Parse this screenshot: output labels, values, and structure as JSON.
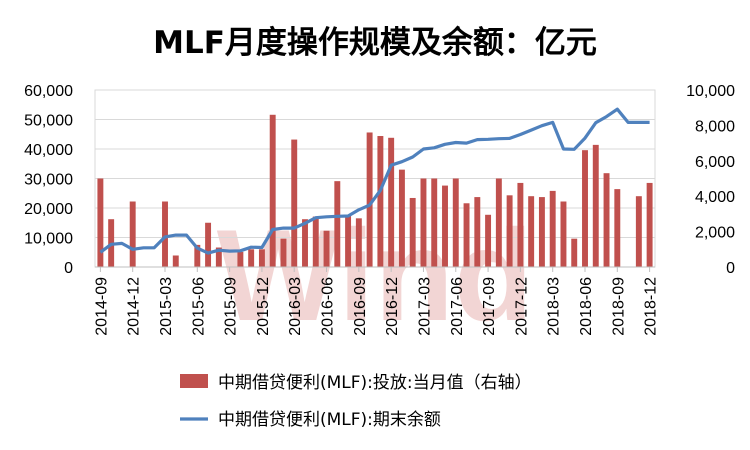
{
  "chart_data": {
    "type": "bar+line",
    "title": "MLF月度操作规模及余额：亿元",
    "watermark": "Wind",
    "left_axis": {
      "ticks": [
        "0",
        "10,000",
        "20,000",
        "30,000",
        "40,000",
        "50,000",
        "60,000"
      ],
      "range": [
        0,
        60000
      ]
    },
    "right_axis": {
      "ticks": [
        "0",
        "2,000",
        "4,000",
        "6,000",
        "8,000",
        "10,000"
      ],
      "range": [
        0,
        10000
      ]
    },
    "x_labels": [
      "2014-09",
      "2014-12",
      "2015-03",
      "2015-06",
      "2015-09",
      "2015-12",
      "2016-03",
      "2016-06",
      "2016-09",
      "2016-12",
      "2017-03",
      "2017-06",
      "2017-09",
      "2017-12",
      "2018-03",
      "2018-06",
      "2018-09",
      "2018-12"
    ],
    "months": [
      "2014-09",
      "2014-10",
      "2014-11",
      "2014-12",
      "2015-01",
      "2015-02",
      "2015-03",
      "2015-04",
      "2015-05",
      "2015-06",
      "2015-07",
      "2015-08",
      "2015-09",
      "2015-10",
      "2015-11",
      "2015-12",
      "2016-01",
      "2016-02",
      "2016-03",
      "2016-04",
      "2016-05",
      "2016-06",
      "2016-07",
      "2016-08",
      "2016-09",
      "2016-10",
      "2016-11",
      "2016-12",
      "2017-01",
      "2017-02",
      "2017-03",
      "2017-04",
      "2017-05",
      "2017-06",
      "2017-07",
      "2017-08",
      "2017-09",
      "2017-10",
      "2017-11",
      "2017-12",
      "2018-01",
      "2018-02",
      "2018-03",
      "2018-04",
      "2018-05",
      "2018-06",
      "2018-07",
      "2018-08",
      "2018-09",
      "2018-10",
      "2018-11",
      "2018-12"
    ],
    "series": [
      {
        "name": "中期借贷便利(MLF):投放:当月值（右轴）",
        "kind": "bar",
        "axis": "right",
        "color": "#c0504d",
        "values": [
          5000,
          2700,
          0,
          3700,
          0,
          0,
          3700,
          650,
          0,
          1250,
          2500,
          1100,
          0,
          850,
          1000,
          1000,
          8600,
          1600,
          7200,
          2700,
          2850,
          2050,
          4850,
          2900,
          2750,
          7600,
          7400,
          7300,
          5500,
          3900,
          5000,
          5000,
          4600,
          5000,
          3600,
          3950,
          2950,
          5000,
          4050,
          4750,
          4000,
          3950,
          4300,
          3700,
          1600,
          6600,
          6900,
          5300,
          4400,
          0,
          4000,
          4750
        ]
      },
      {
        "name": "中期借贷便利(MLF):期末余额",
        "kind": "line",
        "axis": "left",
        "color": "#4f81bd",
        "values": [
          5000,
          7700,
          8000,
          6000,
          6500,
          6500,
          10200,
          10800,
          10800,
          6400,
          4700,
          5700,
          5400,
          5500,
          6700,
          6600,
          12700,
          13200,
          13200,
          14800,
          16700,
          17000,
          17200,
          17300,
          19400,
          21000,
          26000,
          34500,
          35700,
          37300,
          40000,
          40400,
          41600,
          42200,
          42000,
          43200,
          43300,
          43500,
          43600,
          44900,
          46400,
          47900,
          49000,
          40000,
          39900,
          43700,
          48900,
          51000,
          53500,
          49000,
          49000,
          49000
        ]
      }
    ]
  }
}
